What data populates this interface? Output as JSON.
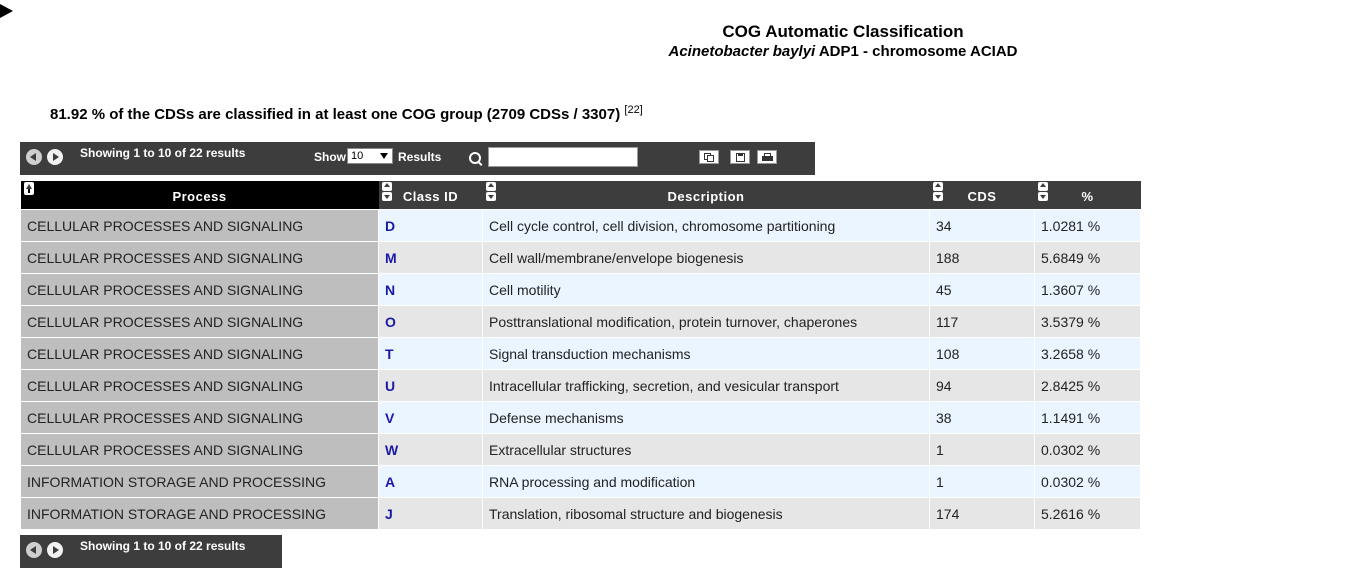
{
  "header": {
    "title": "COG Automatic Classification",
    "species": "Acinetobacter baylyi",
    "strain": "ADP1 - chromosome ACIAD"
  },
  "summary": {
    "text": "81.92 % of the CDSs are classified in at least one COG group (2709 CDSs / 3307)",
    "ref": "[22]"
  },
  "toolbar": {
    "showing": "Showing 1 to 10 of 22 results",
    "show_label": "Show",
    "show_value": "10",
    "results_label": "Results",
    "search_value": ""
  },
  "table": {
    "columns": {
      "process": "Process",
      "class_id": "Class ID",
      "description": "Description",
      "cds": "CDS",
      "percent": "%"
    },
    "rows": [
      {
        "process": "CELLULAR PROCESSES AND SIGNALING",
        "class_id": "D",
        "description": "Cell cycle control, cell division, chromosome partitioning",
        "cds": "34",
        "percent": "1.0281 %"
      },
      {
        "process": "CELLULAR PROCESSES AND SIGNALING",
        "class_id": "M",
        "description": "Cell wall/membrane/envelope biogenesis",
        "cds": "188",
        "percent": "5.6849 %"
      },
      {
        "process": "CELLULAR PROCESSES AND SIGNALING",
        "class_id": "N",
        "description": "Cell motility",
        "cds": "45",
        "percent": "1.3607 %"
      },
      {
        "process": "CELLULAR PROCESSES AND SIGNALING",
        "class_id": "O",
        "description": "Posttranslational modification, protein turnover, chaperones",
        "cds": "117",
        "percent": "3.5379 %"
      },
      {
        "process": "CELLULAR PROCESSES AND SIGNALING",
        "class_id": "T",
        "description": "Signal transduction mechanisms",
        "cds": "108",
        "percent": "3.2658 %"
      },
      {
        "process": "CELLULAR PROCESSES AND SIGNALING",
        "class_id": "U",
        "description": "Intracellular trafficking, secretion, and vesicular transport",
        "cds": "94",
        "percent": "2.8425 %"
      },
      {
        "process": "CELLULAR PROCESSES AND SIGNALING",
        "class_id": "V",
        "description": "Defense mechanisms",
        "cds": "38",
        "percent": "1.1491 %"
      },
      {
        "process": "CELLULAR PROCESSES AND SIGNALING",
        "class_id": "W",
        "description": "Extracellular structures",
        "cds": "1",
        "percent": "0.0302 %"
      },
      {
        "process": "INFORMATION STORAGE AND PROCESSING",
        "class_id": "A",
        "description": "RNA processing and modification",
        "cds": "1",
        "percent": "0.0302 %"
      },
      {
        "process": "INFORMATION STORAGE AND PROCESSING",
        "class_id": "J",
        "description": "Translation, ribosomal structure and biogenesis",
        "cds": "174",
        "percent": "5.2616 %"
      }
    ]
  },
  "footer": {
    "showing": "Showing 1 to 10 of 22 results"
  }
}
